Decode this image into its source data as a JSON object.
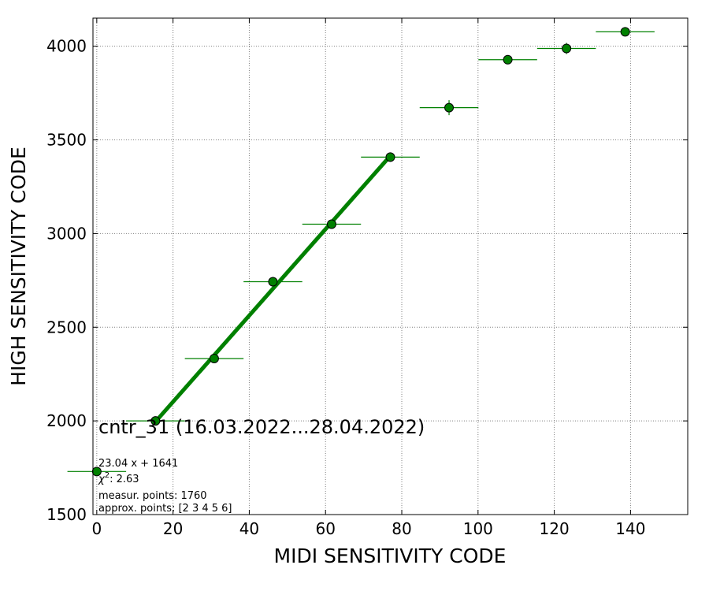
{
  "chart_data": {
    "type": "scatter",
    "title": "cntr_31 (16.03.2022...28.04.2022)",
    "xlabel": "MIDI SENSITIVITY CODE",
    "ylabel": "HIGH SENSITIVITY CODE",
    "xlim": [
      -1,
      155
    ],
    "ylim": [
      1500,
      4150
    ],
    "xticks": [
      0,
      20,
      40,
      60,
      80,
      100,
      120,
      140
    ],
    "yticks": [
      1500,
      2000,
      2500,
      3000,
      3500,
      4000
    ],
    "grid": true,
    "points": [
      {
        "x": 0.0,
        "y": 1730,
        "xerr": 7.7,
        "yerr": 0
      },
      {
        "x": 15.4,
        "y": 2000,
        "xerr": 7.7,
        "yerr": 0
      },
      {
        "x": 30.8,
        "y": 2333,
        "xerr": 7.7,
        "yerr": 0
      },
      {
        "x": 46.2,
        "y": 2743,
        "xerr": 7.7,
        "yerr": 15
      },
      {
        "x": 61.6,
        "y": 3050,
        "xerr": 7.7,
        "yerr": 15
      },
      {
        "x": 77.0,
        "y": 3408,
        "xerr": 7.7,
        "yerr": 25
      },
      {
        "x": 92.4,
        "y": 3672,
        "xerr": 7.7,
        "yerr": 40
      },
      {
        "x": 107.8,
        "y": 3928,
        "xerr": 7.7,
        "yerr": 15
      },
      {
        "x": 123.2,
        "y": 3988,
        "xerr": 7.7,
        "yerr": 30
      },
      {
        "x": 138.6,
        "y": 4077,
        "xerr": 7.7,
        "yerr": 0
      }
    ],
    "fit": {
      "slope": 23.04,
      "intercept": 1641,
      "x_range": [
        15.4,
        77.0
      ]
    },
    "colors": {
      "marker": "#008000",
      "fit_line": "#008000",
      "edge": "#000000",
      "grid": "#808080"
    },
    "annotations": {
      "equation": "23.04 x + 1641",
      "chi2_symbol": "χ",
      "chi2_sup": "2",
      "chi2_value": ": 2.63",
      "measur_points": "measur. points: 1760",
      "approx_points": "approx. points: [2 3 4 5 6]"
    }
  }
}
